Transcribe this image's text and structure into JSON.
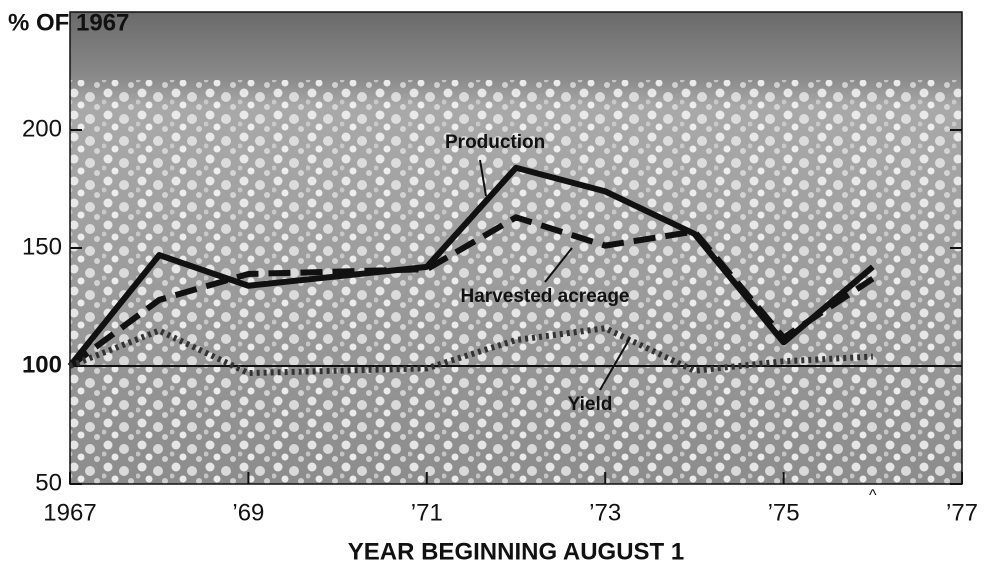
{
  "chart_data": {
    "type": "line",
    "y_label": "% OF 1967",
    "x_label": "YEAR BEGINNING AUGUST 1",
    "x": [
      1967,
      1968,
      1969,
      1970,
      1971,
      1972,
      1973,
      1974,
      1975,
      1976
    ],
    "series": [
      {
        "name": "Production",
        "color": "#111111",
        "style": "solid",
        "values": [
          100,
          147,
          134,
          138,
          142,
          184,
          174,
          156,
          110,
          142
        ]
      },
      {
        "name": "Harvested acreage",
        "color": "#111111",
        "style": "dashed",
        "values": [
          100,
          128,
          139,
          140,
          141,
          163,
          151,
          157,
          112,
          137
        ]
      },
      {
        "name": "Yield",
        "color": "#333333",
        "style": "dotted",
        "values": [
          100,
          115,
          97,
          98,
          99,
          111,
          116,
          98,
          102,
          104
        ]
      }
    ],
    "xlim": [
      1967,
      1977
    ],
    "xticks": [
      {
        "value": 1967,
        "label": "1967"
      },
      {
        "value": 1969,
        "label": "’69"
      },
      {
        "value": 1971,
        "label": "’71"
      },
      {
        "value": 1973,
        "label": "’73"
      },
      {
        "value": 1975,
        "label": "’75"
      },
      {
        "value": 1977,
        "label": "’77"
      }
    ],
    "ylim": [
      50,
      250
    ],
    "yticks": [
      50,
      100,
      150,
      200
    ],
    "reference_line": 100,
    "annotation": {
      "x": 1976,
      "text": "^"
    }
  }
}
